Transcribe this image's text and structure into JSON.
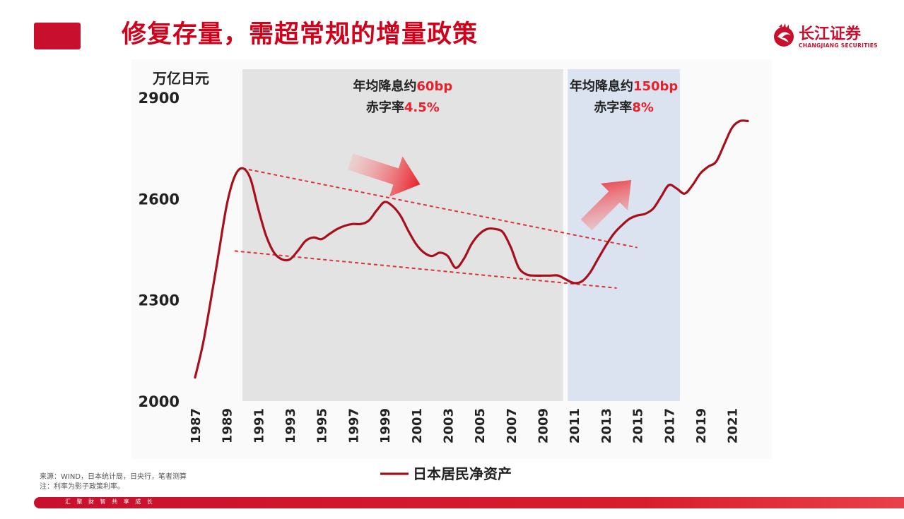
{
  "header": {
    "title": "修复存量，需超常规的增量政策"
  },
  "logo": {
    "cn": "长江证券",
    "en": "CHANGJIANG SECURITIES"
  },
  "source": {
    "line1": "来源：WIND，日本统计局，日央行，笔者测算",
    "line2": "注：利率为影子政策利率。"
  },
  "footer": {
    "slogan": "汇 聚 财 智     共 享 成 长"
  },
  "colors": {
    "brand_red": "#c8102e",
    "line_red": "#a80f1c",
    "trend_red": "#d9343a",
    "gray_band": "#e3e3e3",
    "blue_band": "#dbe3f1",
    "highlight_red": "#e8202a"
  },
  "chart_data": {
    "type": "line",
    "yunit": "万亿日元",
    "ylim": [
      2000,
      2900
    ],
    "yticks": [
      2000,
      2300,
      2600,
      2900
    ],
    "xlim": [
      1987,
      2022
    ],
    "xticks": [
      "1987",
      "1989",
      "1991",
      "1993",
      "1995",
      "1997",
      "1999",
      "2001",
      "2003",
      "2005",
      "2007",
      "2009",
      "2011",
      "2013",
      "2015",
      "2017",
      "2019",
      "2021"
    ],
    "series": [
      {
        "name": "日本居民净资产",
        "x": [
          1987.0,
          1987.5,
          1988.0,
          1988.5,
          1989.0,
          1989.5,
          1990.0,
          1990.5,
          1991.0,
          1991.5,
          1992.0,
          1992.5,
          1993.0,
          1993.5,
          1994.0,
          1994.5,
          1995.0,
          1995.5,
          1996.0,
          1996.5,
          1997.0,
          1997.5,
          1998.0,
          1998.5,
          1999.0,
          1999.5,
          2000.0,
          2000.5,
          2001.0,
          2001.5,
          2002.0,
          2002.5,
          2003.0,
          2003.5,
          2004.0,
          2004.5,
          2005.0,
          2005.5,
          2006.0,
          2006.5,
          2007.0,
          2007.5,
          2008.0,
          2008.5,
          2009.0,
          2009.5,
          2010.0,
          2010.5,
          2011.0,
          2011.5,
          2012.0,
          2012.5,
          2013.0,
          2013.5,
          2014.0,
          2014.5,
          2015.0,
          2015.5,
          2016.0,
          2016.5,
          2017.0,
          2017.5,
          2018.0,
          2018.5,
          2019.0,
          2019.5,
          2020.0,
          2020.5,
          2021.0,
          2021.5,
          2022.0
        ],
        "y": [
          2070,
          2170,
          2300,
          2440,
          2580,
          2665,
          2690,
          2660,
          2570,
          2490,
          2440,
          2420,
          2420,
          2445,
          2475,
          2485,
          2480,
          2495,
          2510,
          2520,
          2525,
          2525,
          2535,
          2565,
          2590,
          2578,
          2550,
          2505,
          2465,
          2440,
          2430,
          2440,
          2430,
          2395,
          2420,
          2465,
          2495,
          2510,
          2510,
          2500,
          2455,
          2395,
          2375,
          2372,
          2372,
          2372,
          2372,
          2360,
          2350,
          2355,
          2380,
          2420,
          2460,
          2495,
          2520,
          2540,
          2550,
          2555,
          2570,
          2605,
          2640,
          2630,
          2615,
          2640,
          2675,
          2695,
          2710,
          2760,
          2810,
          2830,
          2830
        ]
      }
    ],
    "trendlines": [
      {
        "x": [
          1990.0,
          2015.0
        ],
        "y": [
          2690,
          2455
        ]
      },
      {
        "x": [
          1989.5,
          2013.7
        ],
        "y": [
          2445,
          2335
        ]
      }
    ],
    "bands": [
      {
        "x": [
          1990.0,
          2010.3
        ],
        "color": "gray",
        "label_line1_prefix": "年均降息约",
        "label_line1_value": "60bp",
        "label_line2_prefix": "赤字率",
        "label_line2_value": "4.5%"
      },
      {
        "x": [
          2010.6,
          2017.7
        ],
        "color": "blue",
        "label_line1_prefix": "年均降息约",
        "label_line1_value": "150bp",
        "label_line2_prefix": "赤字率",
        "label_line2_value": "8%"
      }
    ],
    "legend": "bottom-center",
    "grid": false
  }
}
